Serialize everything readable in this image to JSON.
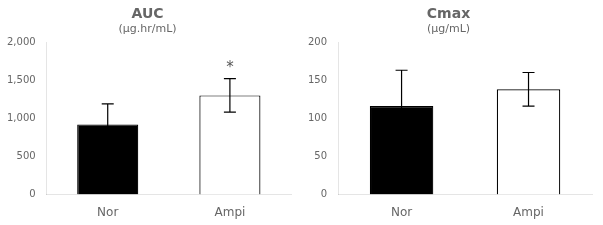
{
  "chart_data": [
    {
      "type": "bar",
      "title": "AUC",
      "subtitle": "(μg.hr/mL)",
      "categories": [
        "Nor",
        "Ampi"
      ],
      "values": [
        920,
        1300
      ],
      "errors": [
        270,
        220
      ],
      "colors": [
        "#000000",
        "#ffffff"
      ],
      "ylim": [
        0,
        2000
      ],
      "yticks": [
        0,
        500,
        {
          "value": 1000,
          "label": "1,000"
        },
        {
          "value": 1500,
          "label": "1,500"
        },
        {
          "value": 2000,
          "label": "2,000"
        }
      ],
      "grid": false,
      "annotations": [
        {
          "text": "*",
          "x": "Ampi"
        }
      ]
    },
    {
      "type": "bar",
      "title": "Cmax",
      "subtitle": "(μg/mL)",
      "categories": [
        "Nor",
        "Ampi"
      ],
      "values": [
        116,
        138
      ],
      "errors": [
        47,
        22
      ],
      "colors": [
        "#000000",
        "#ffffff"
      ],
      "ylim": [
        0,
        200
      ],
      "yticks": [
        0,
        50,
        100,
        150,
        200
      ],
      "grid": false
    }
  ]
}
